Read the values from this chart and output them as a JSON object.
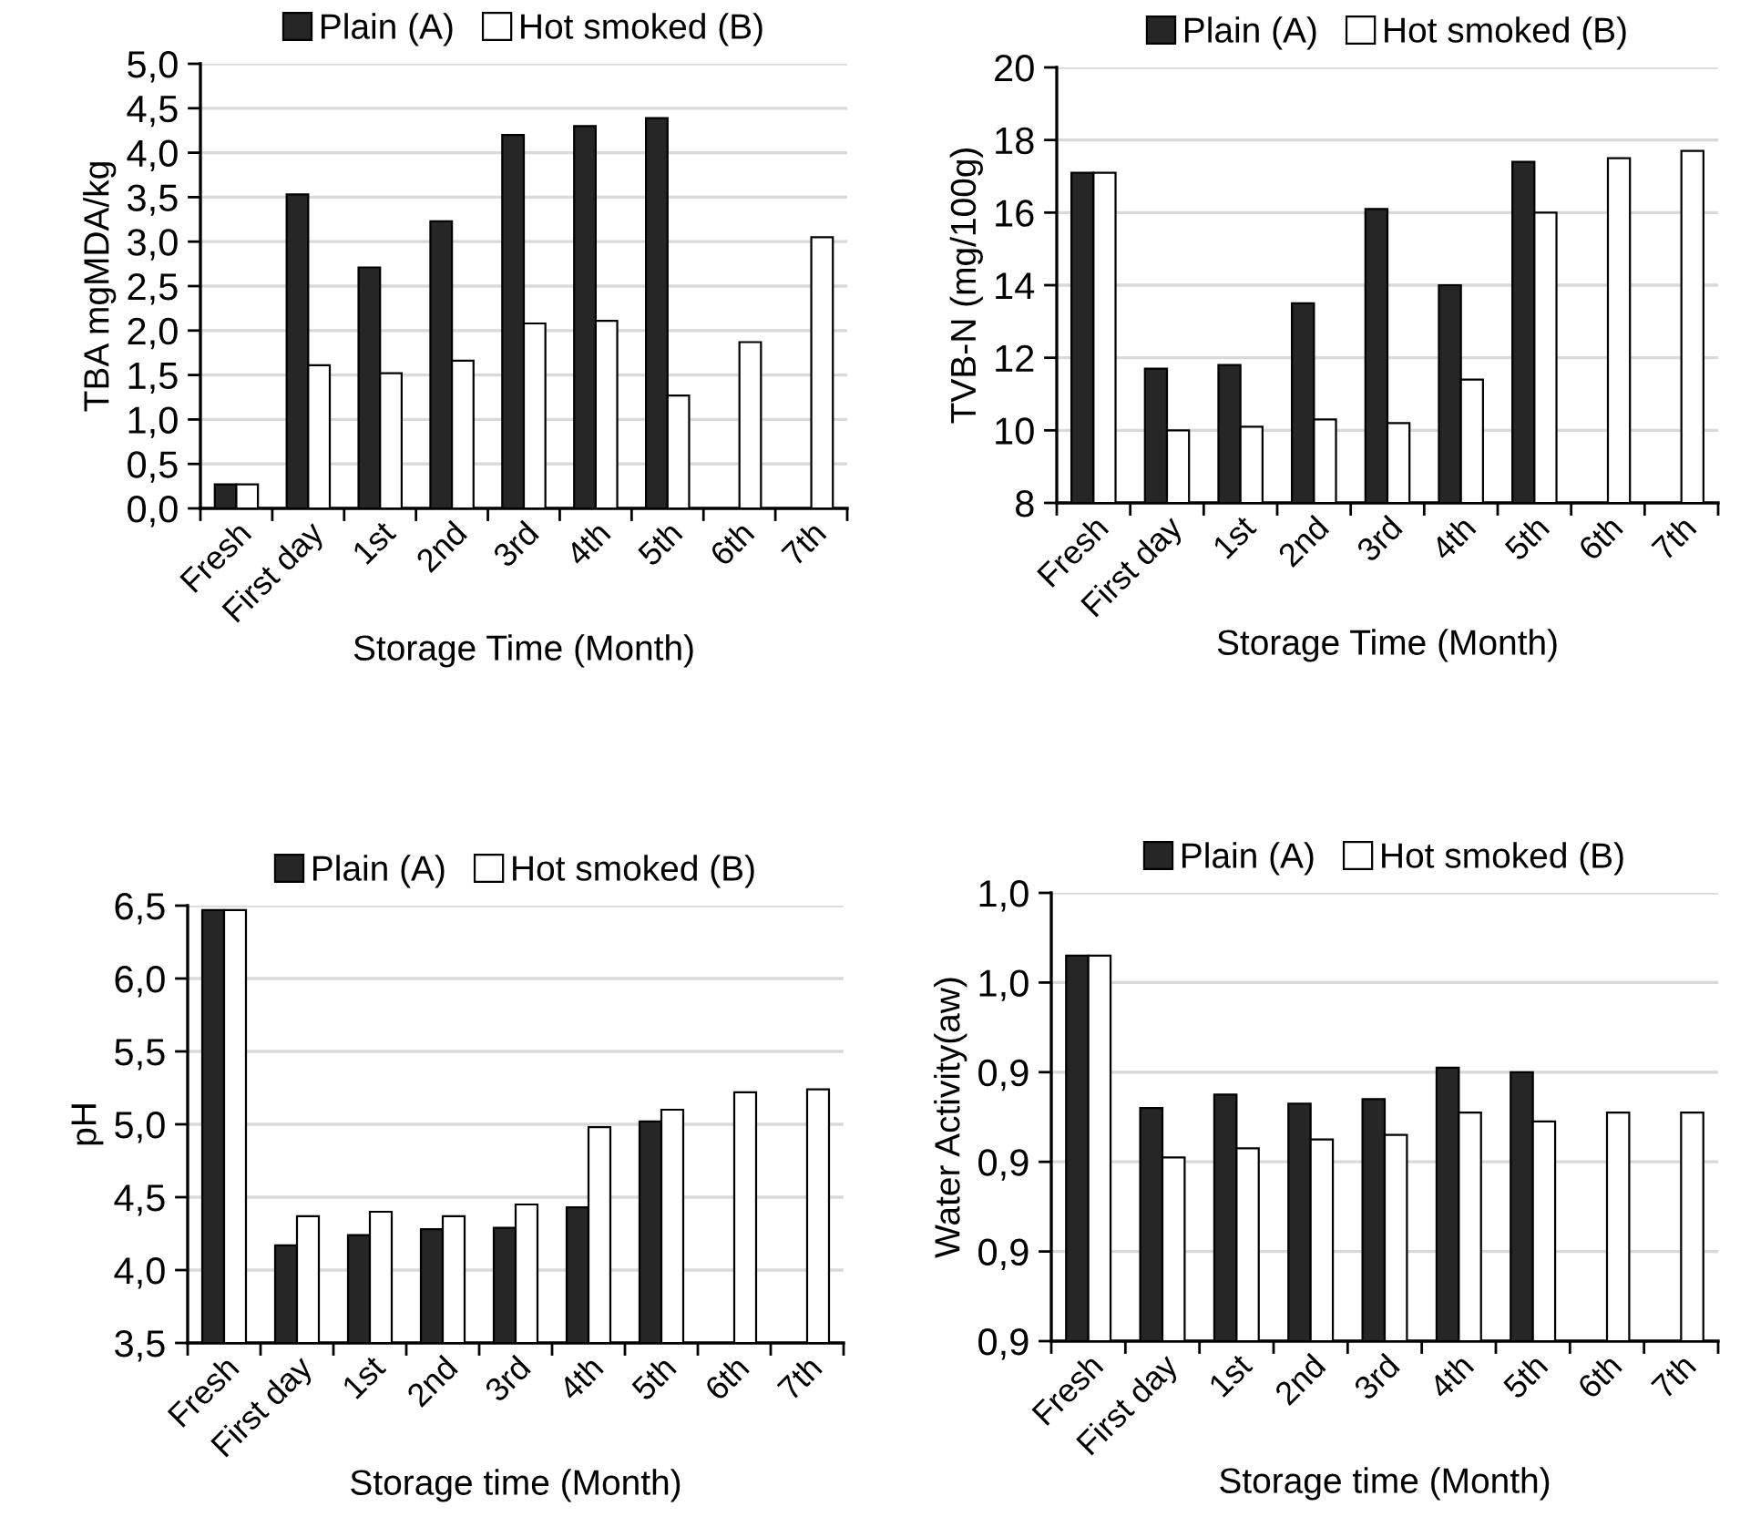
{
  "chart_data": [
    {
      "type": "bar",
      "ylabel": "TBA mgMDA/kg",
      "xlabel": "Storage Time (Month)",
      "categories": [
        "Fresh",
        "First day",
        "1st",
        "2nd",
        "3rd",
        "4th",
        "5th",
        "6th",
        "7th"
      ],
      "series": [
        {
          "name": "Plain (A)",
          "color": "#262626",
          "values": [
            0.27,
            3.53,
            2.71,
            3.23,
            4.2,
            4.3,
            4.39,
            null,
            null
          ]
        },
        {
          "name": "Hot smoked (B)",
          "color": "#ffffff",
          "values": [
            0.27,
            1.61,
            1.52,
            1.66,
            2.08,
            2.11,
            1.27,
            1.87,
            3.05
          ]
        }
      ],
      "ylim": [
        0,
        5
      ],
      "yticks": [
        {
          "value": 0,
          "label": "0,0"
        },
        {
          "value": 0.5,
          "label": "0,5"
        },
        {
          "value": 1,
          "label": "1,0"
        },
        {
          "value": 1.5,
          "label": "1,5"
        },
        {
          "value": 2,
          "label": "2,0"
        },
        {
          "value": 2.5,
          "label": "2,5"
        },
        {
          "value": 3,
          "label": "3,0"
        },
        {
          "value": 3.5,
          "label": "3,5"
        },
        {
          "value": 4,
          "label": "4,0"
        },
        {
          "value": 4.5,
          "label": "4,5"
        },
        {
          "value": 5,
          "label": "5,0"
        }
      ],
      "grid": "y",
      "legend": "top"
    },
    {
      "type": "bar",
      "ylabel": "TVB-N (mg/100g)",
      "xlabel": "Storage Time (Month)",
      "categories": [
        "Fresh",
        "First day",
        "1st",
        "2nd",
        "3rd",
        "4th",
        "5th",
        "6th",
        "7th"
      ],
      "series": [
        {
          "name": "Plain (A)",
          "color": "#262626",
          "values": [
            17.1,
            11.7,
            11.8,
            13.5,
            16.1,
            14.0,
            17.4,
            null,
            null
          ]
        },
        {
          "name": "Hot smoked (B)",
          "color": "#ffffff",
          "values": [
            17.1,
            10.0,
            10.1,
            10.3,
            10.2,
            11.4,
            16.0,
            17.5,
            17.7
          ]
        }
      ],
      "ylim": [
        8,
        20
      ],
      "yticks": [
        8,
        10,
        12,
        14,
        16,
        18,
        20
      ],
      "grid": "y",
      "legend": "top"
    },
    {
      "type": "bar",
      "ylabel": "pH",
      "xlabel": "Storage time (Month)",
      "categories": [
        "Fresh",
        "First day",
        "1st",
        "2nd",
        "3rd",
        "4th",
        "5th",
        "6th",
        "7th"
      ],
      "series": [
        {
          "name": "Plain (A)",
          "color": "#262626",
          "values": [
            6.47,
            4.17,
            4.24,
            4.28,
            4.29,
            4.43,
            5.02,
            null,
            null
          ]
        },
        {
          "name": "Hot smoked (B)",
          "color": "#ffffff",
          "values": [
            6.47,
            4.37,
            4.4,
            4.37,
            4.45,
            4.98,
            5.1,
            5.22,
            5.24
          ]
        }
      ],
      "ylim": [
        3.5,
        6.5
      ],
      "yticks": [
        {
          "value": 3.5,
          "label": "3,5"
        },
        {
          "value": 4,
          "label": "4,0"
        },
        {
          "value": 4.5,
          "label": "4,5"
        },
        {
          "value": 5,
          "label": "5,0"
        },
        {
          "value": 5.5,
          "label": "5,5"
        },
        {
          "value": 6,
          "label": "6,0"
        },
        {
          "value": 6.5,
          "label": "6,5"
        }
      ],
      "grid": "y",
      "legend": "top"
    },
    {
      "type": "bar",
      "ylabel": "Water Activity(aw)",
      "xlabel": "Storage time (Month)",
      "categories": [
        "Fresh",
        "First day",
        "1st",
        "2nd",
        "3rd",
        "4th",
        "5th",
        "6th",
        "7th"
      ],
      "series": [
        {
          "name": "Plain (A)",
          "color": "#262626",
          "values": [
            0.966,
            0.932,
            0.935,
            0.933,
            0.934,
            0.941,
            0.94,
            null,
            null
          ]
        },
        {
          "name": "Hot smoked (B)",
          "color": "#ffffff",
          "values": [
            0.966,
            0.921,
            0.923,
            0.925,
            0.926,
            0.931,
            0.929,
            0.931,
            0.931
          ]
        }
      ],
      "ylim": [
        0.88,
        0.98
      ],
      "yticks": [
        {
          "value": 0.88,
          "label": "0,9"
        },
        {
          "value": 0.9,
          "label": "0,9"
        },
        {
          "value": 0.92,
          "label": "0,9"
        },
        {
          "value": 0.94,
          "label": "0,9"
        },
        {
          "value": 0.96,
          "label": "1,0"
        },
        {
          "value": 0.98,
          "label": "1,0"
        }
      ],
      "grid": "y",
      "legend": "top"
    }
  ]
}
